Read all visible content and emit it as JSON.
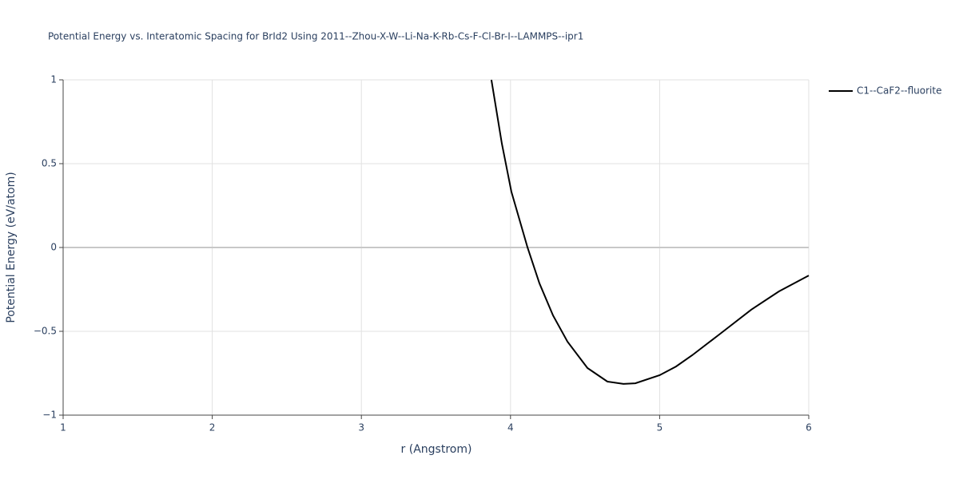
{
  "chart_data": {
    "type": "line",
    "title": "Potential Energy vs. Interatomic Spacing for BrId2 Using 2011--Zhou-X-W--Li-Na-K-Rb-Cs-F-Cl-Br-I--LAMMPS--ipr1",
    "x_label": "r (Angstrom)",
    "y_label": "Potential Energy (eV/atom)",
    "xlim": [
      1,
      6
    ],
    "ylim": [
      -1,
      1
    ],
    "xticks": [
      1,
      2,
      3,
      4,
      5,
      6
    ],
    "yticks": [
      {
        "value": -1,
        "label": "−1"
      },
      {
        "value": -0.5,
        "label": "−0.5"
      },
      0,
      0.5,
      1
    ],
    "grid": true,
    "legend_position": "right",
    "series": [
      {
        "name": "C1--CaF2--fluorite",
        "color": "#000000",
        "x": [
          3.872,
          3.942,
          4.006,
          4.114,
          4.194,
          4.285,
          4.382,
          4.516,
          4.65,
          4.757,
          4.837,
          5.0,
          5.11,
          5.218,
          5.4,
          5.614,
          5.8,
          6.0
        ],
        "values": [
          1,
          0.619,
          0.333,
          0,
          -0.214,
          -0.405,
          -0.562,
          -0.719,
          -0.8,
          -0.814,
          -0.81,
          -0.762,
          -0.71,
          -0.643,
          -0.519,
          -0.371,
          -0.262,
          -0.167
        ]
      }
    ]
  }
}
